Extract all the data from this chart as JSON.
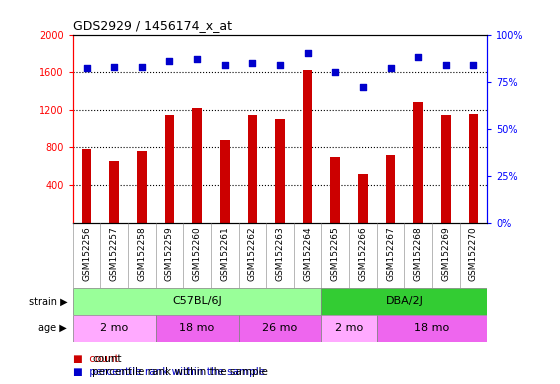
{
  "title": "GDS2929 / 1456174_x_at",
  "samples": [
    "GSM152256",
    "GSM152257",
    "GSM152258",
    "GSM152259",
    "GSM152260",
    "GSM152261",
    "GSM152262",
    "GSM152263",
    "GSM152264",
    "GSM152265",
    "GSM152266",
    "GSM152267",
    "GSM152268",
    "GSM152269",
    "GSM152270"
  ],
  "counts": [
    780,
    660,
    760,
    1140,
    1220,
    880,
    1140,
    1100,
    1620,
    700,
    520,
    720,
    1280,
    1140,
    1160
  ],
  "percentile": [
    82,
    83,
    83,
    86,
    87,
    84,
    85,
    84,
    90,
    80,
    72,
    82,
    88,
    84,
    84
  ],
  "ylim_left": [
    0,
    2000
  ],
  "ylim_right": [
    0,
    100
  ],
  "yticks_left": [
    400,
    800,
    1200,
    1600,
    2000
  ],
  "yticks_right": [
    0,
    25,
    50,
    75,
    100
  ],
  "bar_color": "#cc0000",
  "dot_color": "#0000cc",
  "strain_c57_count": 9,
  "strain_dba_count": 6,
  "strain_c57_label": "C57BL/6J",
  "strain_dba_label": "DBA/2J",
  "strain_c57_color": "#99ff99",
  "strain_dba_color": "#33cc33",
  "age_groups": [
    {
      "label": "2 mo",
      "start": 0,
      "end": 3,
      "color": "#ffaaff"
    },
    {
      "label": "18 mo",
      "start": 3,
      "end": 6,
      "color": "#ee66ee"
    },
    {
      "label": "26 mo",
      "start": 6,
      "end": 9,
      "color": "#ee66ee"
    },
    {
      "label": "2 mo",
      "start": 9,
      "end": 11,
      "color": "#ffaaff"
    },
    {
      "label": "18 mo",
      "start": 11,
      "end": 15,
      "color": "#ee66ee"
    }
  ],
  "plot_bg": "#ffffff",
  "xtick_bg": "#cccccc",
  "fig_bg": "#ffffff"
}
